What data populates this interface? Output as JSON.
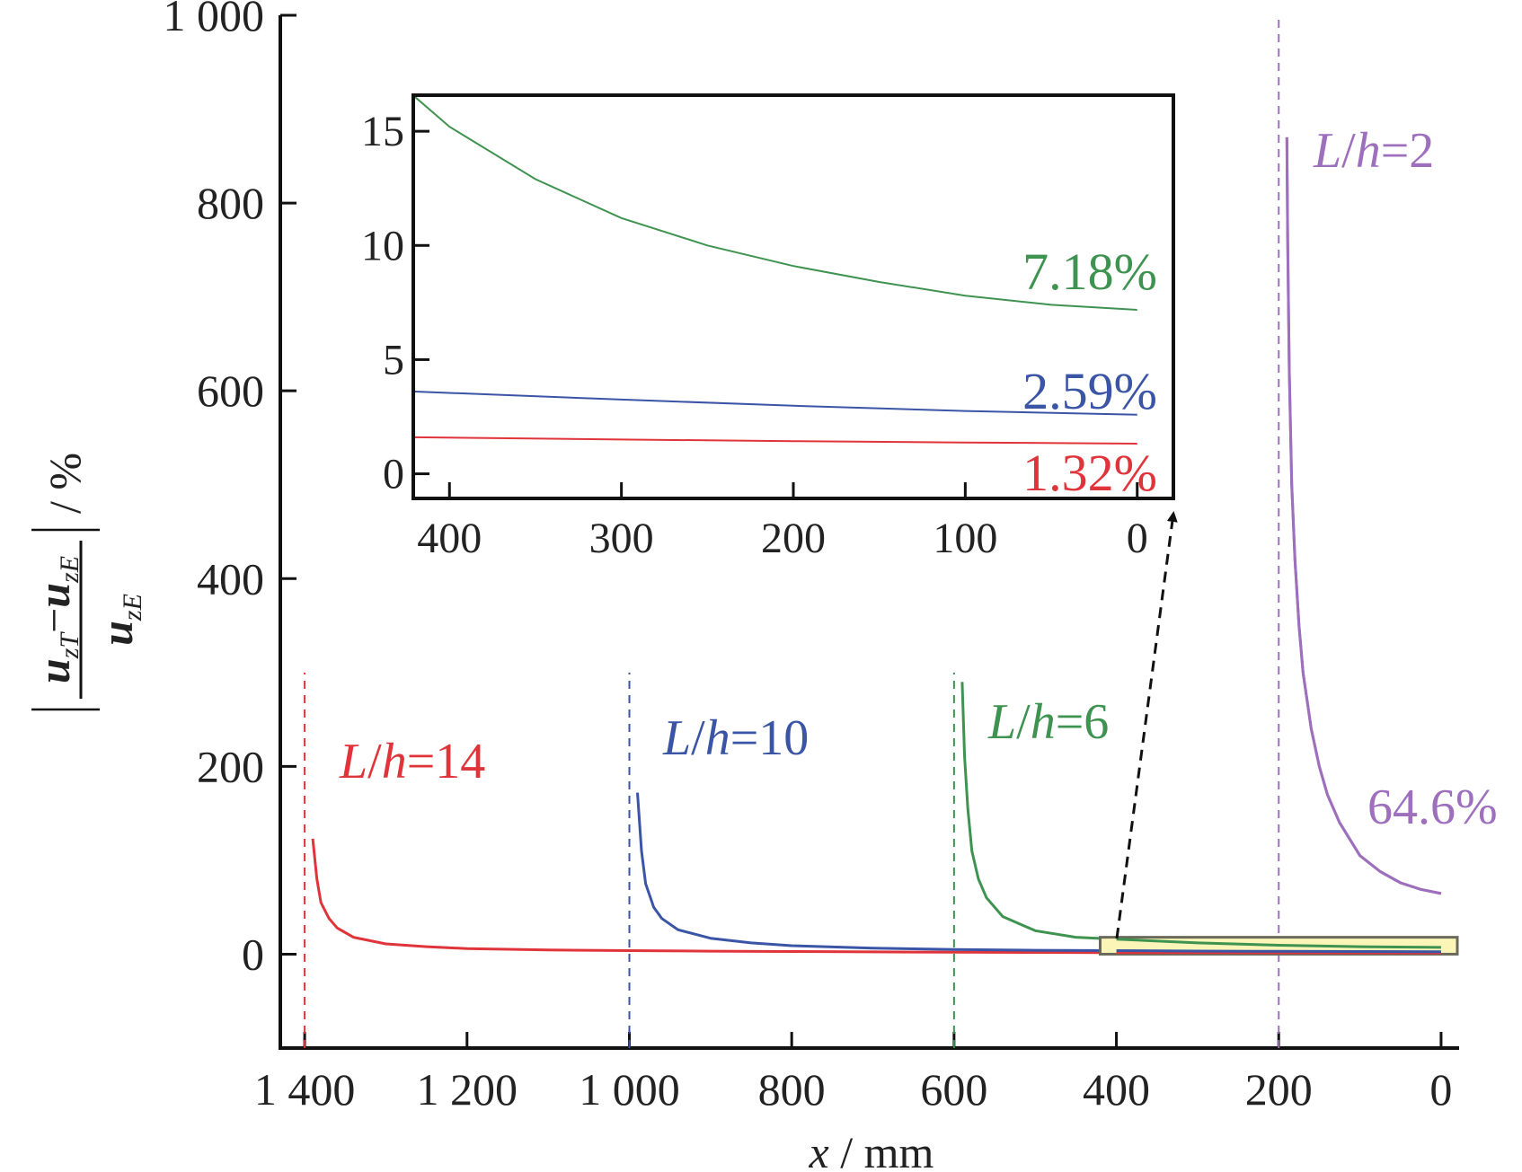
{
  "chart_data": {
    "type": "line",
    "xlabel": {
      "var": "x",
      "unit": " / mm"
    },
    "ylabel": {
      "numerator": {
        "a": "u",
        "a_sub": "zT",
        "op": "−",
        "b": "u",
        "b_sub": "zE"
      },
      "denominator": {
        "a": "u",
        "a_sub": "zE"
      },
      "unit": "/ %"
    },
    "x_reversed": true,
    "xlim": [
      1430,
      -20
    ],
    "ylim": [
      -100,
      1000
    ],
    "xticks": [
      1400,
      1200,
      1000,
      800,
      600,
      400,
      200,
      0
    ],
    "xtick_labels": [
      "1 400",
      "1 200",
      "1 000",
      "800",
      "600",
      "400",
      "200",
      "0"
    ],
    "yticks": [
      0,
      200,
      400,
      600,
      800,
      1000
    ],
    "ytick_labels": [
      "0",
      "200",
      "400",
      "600",
      "800",
      "1 000"
    ],
    "grid": false,
    "legend": "none",
    "series": [
      {
        "name_parts": {
          "var": "L",
          "sep": "/",
          "var2": "h",
          "eq": "=14"
        },
        "color": "#e0343b",
        "support_x": 1400,
        "marker_top": 300,
        "x": [
          1390,
          1385,
          1380,
          1370,
          1360,
          1340,
          1300,
          1250,
          1200,
          1100,
          1000,
          900,
          800,
          700,
          600,
          500,
          400,
          300,
          200,
          100,
          0
        ],
        "y": [
          123,
          80,
          55,
          38,
          28,
          18,
          11,
          8,
          6,
          4.5,
          3.8,
          3.2,
          2.8,
          2.4,
          2.1,
          1.9,
          1.7,
          1.6,
          1.5,
          1.4,
          1.32
        ],
        "end_label": ""
      },
      {
        "name_parts": {
          "var": "L",
          "sep": "/",
          "var2": "h",
          "eq": "=10"
        },
        "color": "#3b55a6",
        "support_x": 1000,
        "marker_top": 300,
        "x": [
          990,
          985,
          980,
          970,
          960,
          940,
          900,
          850,
          800,
          700,
          600,
          500,
          400,
          300,
          200,
          100,
          0
        ],
        "y": [
          172,
          110,
          75,
          50,
          38,
          26,
          17,
          12,
          9,
          6.5,
          5,
          4.2,
          3.8,
          3.3,
          3,
          2.8,
          2.59
        ],
        "end_label": ""
      },
      {
        "name_parts": {
          "var": "L",
          "sep": "/",
          "var2": "h",
          "eq": "=6"
        },
        "color": "#3f9350",
        "support_x": 600,
        "marker_top": 300,
        "x": [
          590,
          587,
          583,
          578,
          570,
          560,
          540,
          500,
          450,
          400,
          300,
          200,
          100,
          0
        ],
        "y": [
          290,
          210,
          155,
          110,
          80,
          60,
          40,
          25,
          18,
          16,
          12,
          9.5,
          8,
          7.18
        ],
        "end_label": ""
      },
      {
        "name_parts": {
          "var": "L",
          "sep": "/",
          "var2": "h",
          "eq": "=2"
        },
        "color": "#9d6fbd",
        "support_x": 200,
        "marker_top": 1000,
        "x": [
          190,
          189,
          187,
          184,
          180,
          175,
          170,
          160,
          150,
          140,
          125,
          100,
          75,
          50,
          25,
          0
        ],
        "y": [
          870,
          760,
          620,
          500,
          420,
          350,
          300,
          240,
          200,
          170,
          140,
          105,
          88,
          76,
          69,
          64.6
        ],
        "end_label": "64.6%"
      }
    ],
    "highlight_box": {
      "x0": 420,
      "x1": -20,
      "y0": 0,
      "y1": 18
    },
    "inset": {
      "x_reversed": true,
      "xlim": [
        420,
        -20
      ],
      "ylim": [
        -1,
        16.5
      ],
      "xticks": [
        400,
        300,
        200,
        100,
        0
      ],
      "xtick_labels": [
        "400",
        "300",
        "200",
        "100",
        "0"
      ],
      "yticks": [
        0,
        5,
        10,
        15
      ],
      "ytick_labels": [
        "0",
        "5",
        "10",
        "15"
      ],
      "series": [
        {
          "color": "#3f9350",
          "end_label": "7.18%",
          "x": [
            420,
            400,
            350,
            300,
            250,
            200,
            150,
            100,
            50,
            0
          ],
          "y": [
            16.5,
            15.2,
            12.9,
            11.2,
            10,
            9.1,
            8.4,
            7.8,
            7.4,
            7.18
          ]
        },
        {
          "color": "#3b55a6",
          "end_label": "2.59%",
          "x": [
            420,
            300,
            200,
            100,
            0
          ],
          "y": [
            3.6,
            3.25,
            2.98,
            2.75,
            2.59
          ]
        },
        {
          "color": "#e0343b",
          "end_label": "1.32%",
          "x": [
            420,
            300,
            200,
            100,
            0
          ],
          "y": [
            1.6,
            1.5,
            1.43,
            1.37,
            1.32
          ]
        }
      ]
    }
  }
}
